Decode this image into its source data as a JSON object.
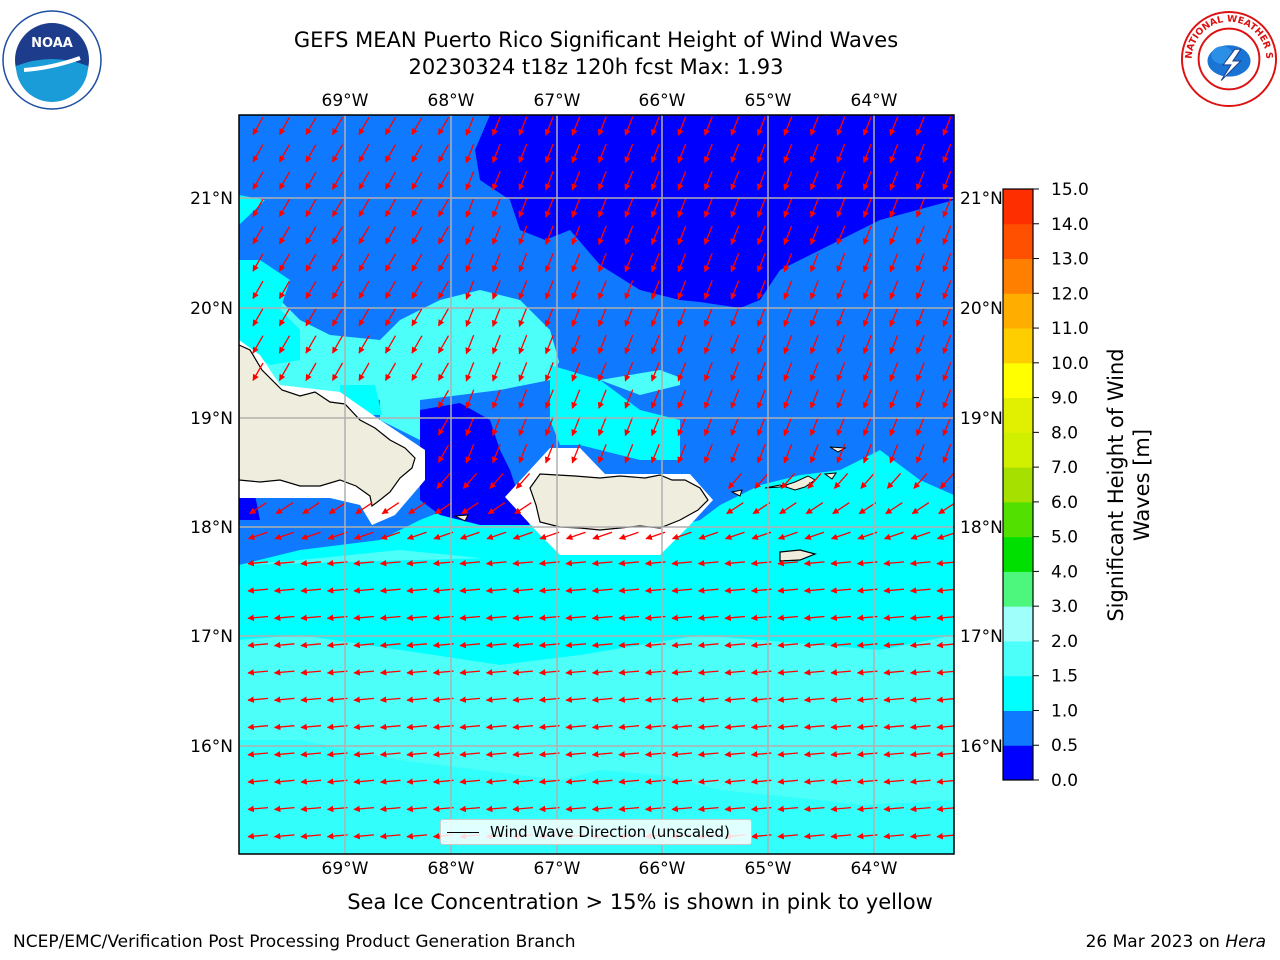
{
  "title": {
    "line1": "GEFS MEAN Puerto Rico Significant Height of Wind Waves",
    "line2": "20230324 t18z 120h fcst   Max: 1.93"
  },
  "map": {
    "lon_labels": [
      "69°W",
      "68°W",
      "67°W",
      "66°W",
      "65°W",
      "64°W"
    ],
    "lat_labels": [
      "21°N",
      "20°N",
      "19°N",
      "18°N",
      "17°N",
      "16°N"
    ],
    "land_color": "#efedde",
    "arrow_color": "#ff0000"
  },
  "legend": {
    "label": "Wind Wave Direction (unscaled)"
  },
  "colorbar": {
    "title": "Significant Height of Wind Waves [m]",
    "ticks": [
      "0.0",
      "0.5",
      "1.0",
      "1.5",
      "2.0",
      "3.0",
      "4.0",
      "5.0",
      "6.0",
      "7.0",
      "8.0",
      "9.0",
      "10.0",
      "11.0",
      "12.0",
      "13.0",
      "14.0",
      "15.0"
    ],
    "colors": [
      "#0000ff",
      "#0f7aff",
      "#00ffff",
      "#4dfff9",
      "#9ffffa",
      "#4df77d",
      "#00e000",
      "#52e000",
      "#a5e000",
      "#d0f000",
      "#e0f000",
      "#ffff00",
      "#ffce00",
      "#ffae00",
      "#ff8000",
      "#ff5000",
      "#ff2e00",
      "#ff0000"
    ]
  },
  "logos": {
    "noaa": "NOAA",
    "nws": "NATIONAL WEATHER SERVICE"
  },
  "footer": {
    "ice_note": "Sea Ice Concentration > 15% is shown in pink to yellow",
    "left": "NCEP/EMC/Verification Post Processing Product Generation Branch",
    "right_date": "26 Mar 2023 on",
    "right_host": "Hera"
  }
}
